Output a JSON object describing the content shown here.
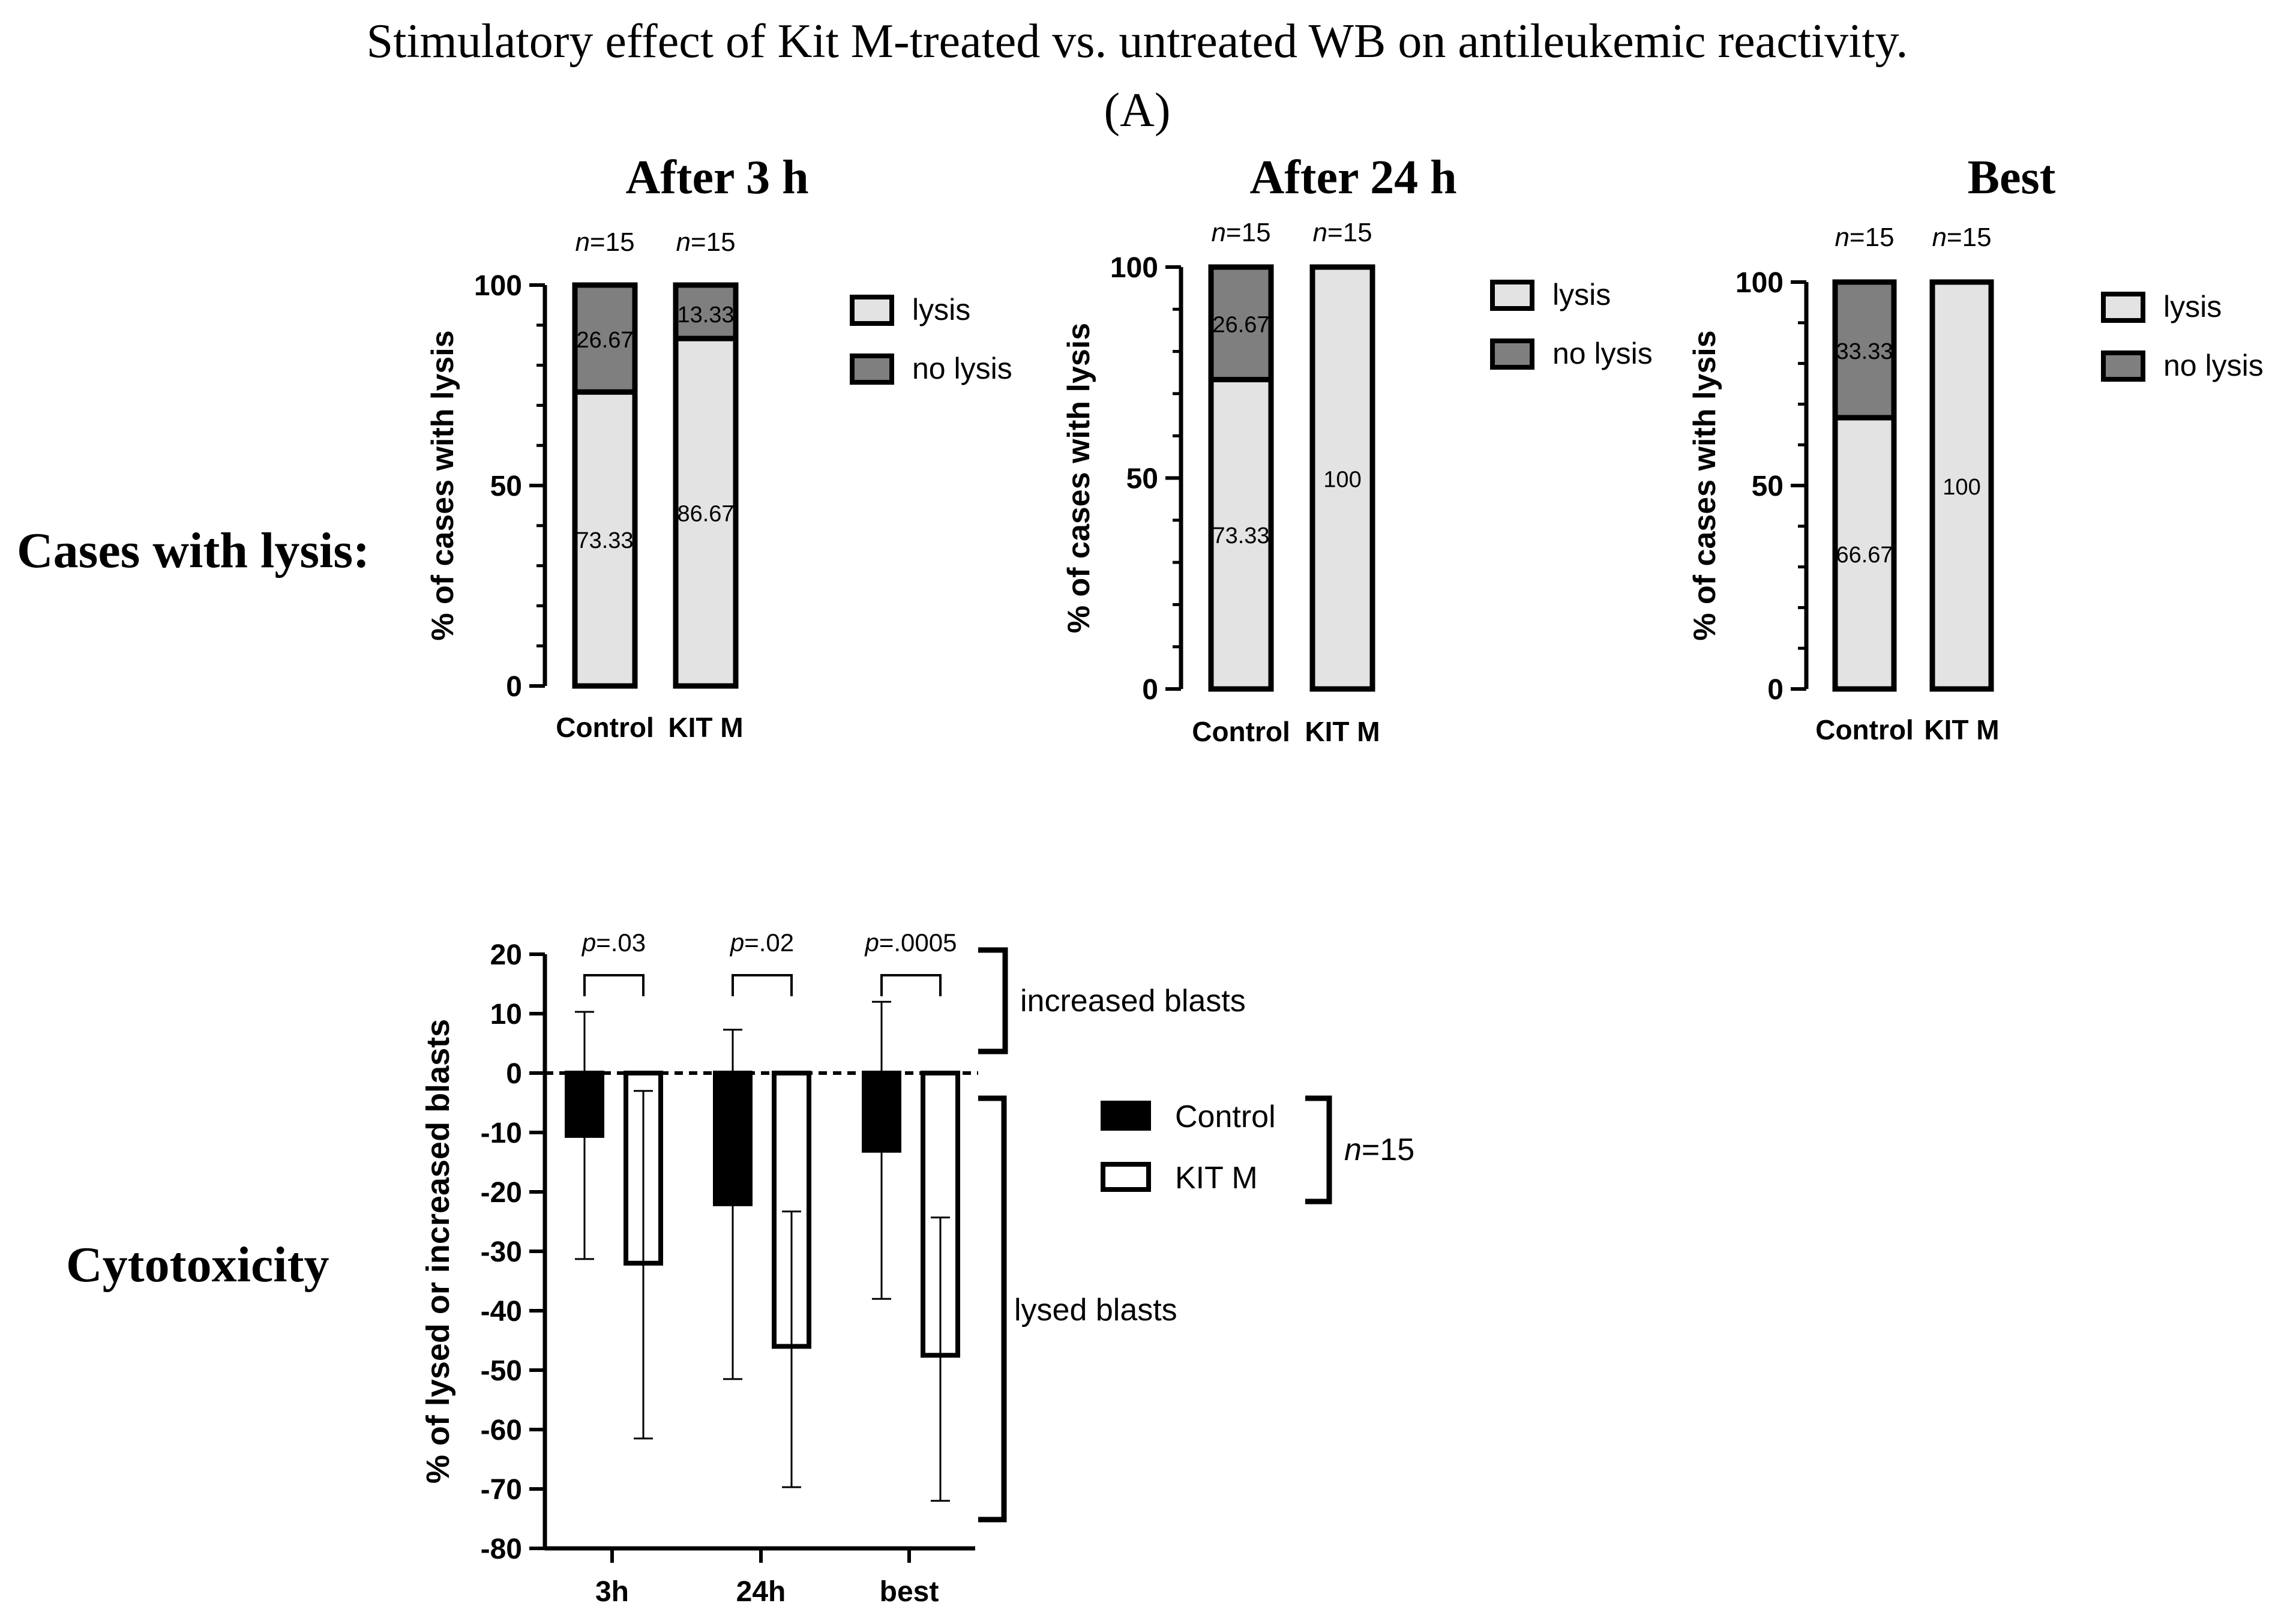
{
  "figure": {
    "title": "Stimulatory effect of Kit M-treated vs. untreated WB on antileukemic reactivity.",
    "panel_label": "(A)",
    "row_labels": {
      "cases": "Cases with lysis:",
      "cytotoxicity": "Cytotoxicity"
    }
  },
  "colors": {
    "lysis": "#e3e3e3",
    "no_lysis": "#7f7f7f",
    "control": "#000000",
    "kitm": "#ffffff",
    "axis": "#000000"
  },
  "chart_data": [
    {
      "type": "bar",
      "stacked": true,
      "title": "After 3 h",
      "ylabel": "% of cases with lysis",
      "ylim": [
        0,
        100
      ],
      "yticks": [
        0,
        50,
        100
      ],
      "categories": [
        "Control",
        "KIT M"
      ],
      "n_labels": [
        {
          "n": "n",
          "eq": "=15"
        },
        {
          "n": "n",
          "eq": "=15"
        }
      ],
      "series": [
        {
          "name": "lysis",
          "values": [
            73.33,
            86.67
          ],
          "labels": [
            "73.33",
            "86.67"
          ]
        },
        {
          "name": "no lysis",
          "values": [
            26.67,
            13.33
          ],
          "labels": [
            "26.67",
            "13.33"
          ]
        }
      ],
      "legend": [
        "lysis",
        "no lysis"
      ]
    },
    {
      "type": "bar",
      "stacked": true,
      "title": "After 24 h",
      "ylabel": "% of cases with lysis",
      "ylim": [
        0,
        100
      ],
      "yticks": [
        0,
        50,
        100
      ],
      "categories": [
        "Control",
        "KIT M"
      ],
      "n_labels": [
        {
          "n": "n",
          "eq": "=15"
        },
        {
          "n": "n",
          "eq": "=15"
        }
      ],
      "series": [
        {
          "name": "lysis",
          "values": [
            73.33,
            100
          ],
          "labels": [
            "73.33",
            "100"
          ]
        },
        {
          "name": "no lysis",
          "values": [
            26.67,
            0
          ],
          "labels": [
            "26.67",
            ""
          ]
        }
      ],
      "legend": [
        "lysis",
        "no lysis"
      ]
    },
    {
      "type": "bar",
      "stacked": true,
      "title": "Best",
      "ylabel": "% of cases with lysis",
      "ylim": [
        0,
        100
      ],
      "yticks": [
        0,
        50,
        100
      ],
      "categories": [
        "Control",
        "KIT M"
      ],
      "n_labels": [
        {
          "n": "n",
          "eq": "=15"
        },
        {
          "n": "n",
          "eq": "=15"
        }
      ],
      "series": [
        {
          "name": "lysis",
          "values": [
            66.67,
            100
          ],
          "labels": [
            "66.67",
            "100"
          ]
        },
        {
          "name": "no lysis",
          "values": [
            33.33,
            0
          ],
          "labels": [
            "33.33",
            ""
          ]
        }
      ],
      "legend": [
        "lysis",
        "no lysis"
      ]
    },
    {
      "type": "bar",
      "title": "",
      "ylabel": "% of lysed or increased blasts",
      "ylim": [
        -80,
        20
      ],
      "yticks": [
        20,
        10,
        0,
        -10,
        -20,
        -30,
        -40,
        -50,
        -60,
        -70,
        -80
      ],
      "categories": [
        "3h",
        "24h",
        "best"
      ],
      "series": [
        {
          "name": "Control",
          "values": [
            -10.5,
            -22,
            -13
          ],
          "error_low": [
            -31.3,
            -51.5,
            -38
          ],
          "error_high": [
            10.3,
            7.3,
            12
          ]
        },
        {
          "name": "KIT M",
          "values": [
            -32,
            -46,
            -47.5
          ],
          "error_low": [
            -61.5,
            -69.7,
            -72
          ],
          "error_high": [
            -3,
            -23.3,
            -24.3
          ]
        }
      ],
      "pvalues": [
        {
          "p": "p",
          "value": "=.03"
        },
        {
          "p": "p",
          "value": "=.02"
        },
        {
          "p": "p",
          "value": "=.0005"
        }
      ],
      "annotations": {
        "increased": "increased blasts",
        "lysed": "lysed blasts"
      },
      "n_group": {
        "n": "n",
        "eq": "=15"
      },
      "legend": [
        "Control",
        "KIT M"
      ]
    }
  ]
}
